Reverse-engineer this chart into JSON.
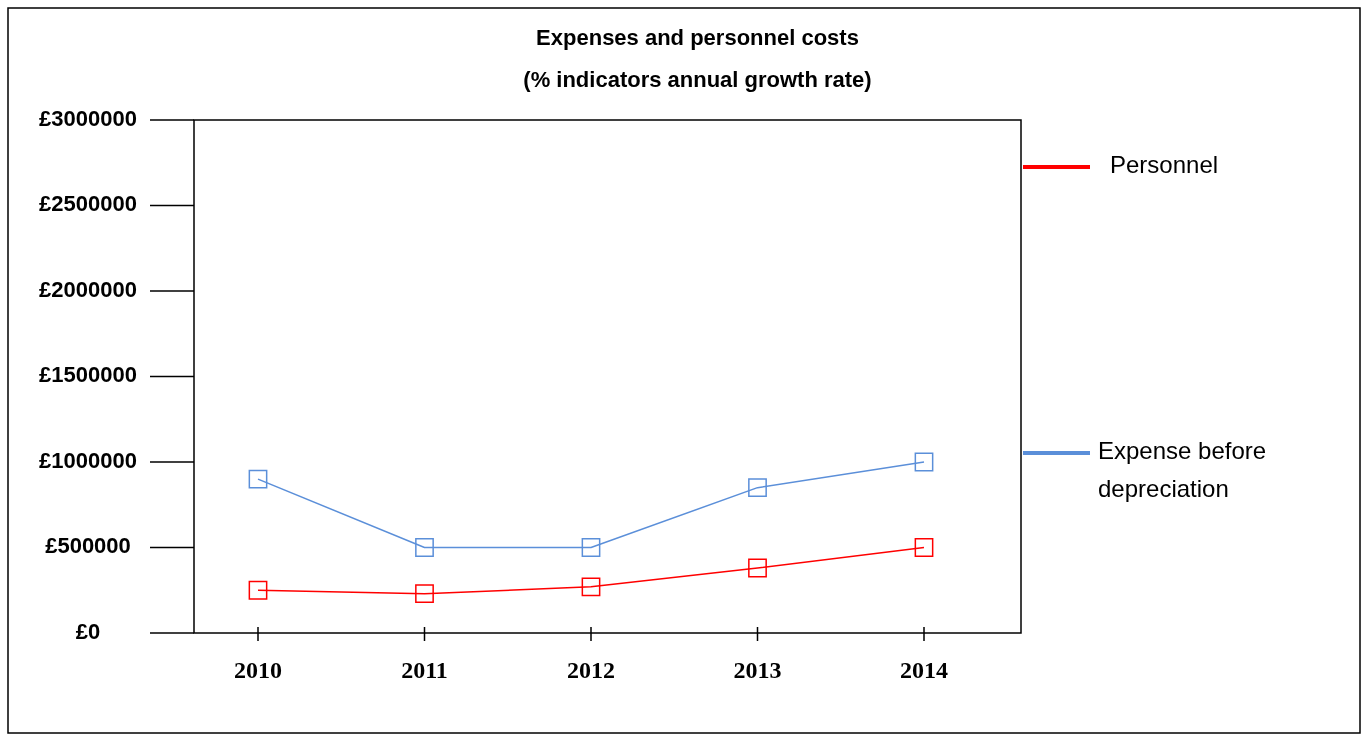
{
  "chart_data": {
    "type": "line",
    "title": "Expenses and personnel costs",
    "subtitle": "(% indicators annual growth rate)",
    "categories": [
      "2010",
      "2011",
      "2012",
      "2013",
      "2014"
    ],
    "series": [
      {
        "name": "Personnel",
        "color": "#ff0000",
        "values": [
          250000,
          230000,
          270000,
          380000,
          500000
        ]
      },
      {
        "name": "Expense before depreciation",
        "color": "#5b8fd9",
        "values": [
          900000,
          500000,
          500000,
          850000,
          1000000
        ]
      }
    ],
    "ylim": [
      0,
      3000000
    ],
    "yticks": [
      {
        "value": 0,
        "label": "£0"
      },
      {
        "value": 500000,
        "label": "£500000"
      },
      {
        "value": 1000000,
        "label": "£1000000"
      },
      {
        "value": 1500000,
        "label": "£1500000"
      },
      {
        "value": 2000000,
        "label": "£2000000"
      },
      {
        "value": 2500000,
        "label": "£2500000"
      },
      {
        "value": 3000000,
        "label": "£3000000"
      }
    ],
    "marker": "square",
    "legend": "right",
    "grid": false
  }
}
